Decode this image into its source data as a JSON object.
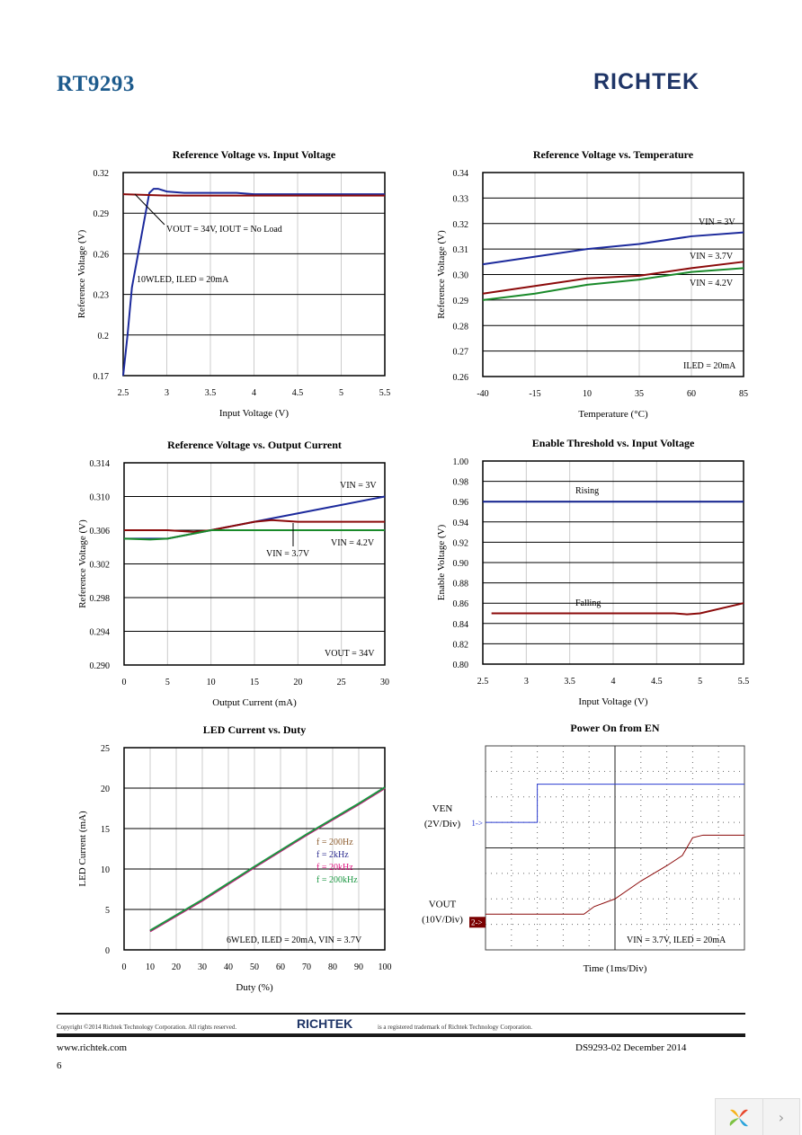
{
  "header": {
    "doc_title": "RT9293",
    "logo": "RICHTEK"
  },
  "footer": {
    "copyright": "Copyright ©2014 Richtek Technology Corporation. All rights reserved.",
    "trademark": "is a registered trademark of Richtek Technology Corporation.",
    "logo": "RICHTEK",
    "url": "www.richtek.com",
    "doc_id": "DS9293-02   December  2014",
    "page_number": "6"
  },
  "viewer": {
    "logo_icon": "pinwheel-icon",
    "next_icon": "chevron-right-icon",
    "next_label": "›"
  },
  "chart_data": [
    {
      "type": "line",
      "title": "Reference Voltage vs. Input  Voltage",
      "xlabel": "Input  Voltage (V)",
      "ylabel": "Reference Voltage (V)",
      "xlim": [
        2.5,
        5.5
      ],
      "ylim": [
        0.17,
        0.32
      ],
      "xticks": [
        "2.5",
        "3",
        "3.5",
        "4",
        "4.5",
        "5",
        "5.5"
      ],
      "yticks": [
        "0.17",
        "0.2",
        "0.23",
        "0.26",
        "0.29",
        "0.32"
      ],
      "grid": true,
      "series": [
        {
          "color": "#1c2a9c",
          "points": [
            [
              2.5,
              0.17
            ],
            [
              2.55,
              0.2
            ],
            [
              2.6,
              0.235
            ],
            [
              2.7,
              0.27
            ],
            [
              2.8,
              0.305
            ],
            [
              2.85,
              0.308
            ],
            [
              2.9,
              0.308
            ],
            [
              3,
              0.306
            ],
            [
              3.2,
              0.305
            ],
            [
              3.8,
              0.305
            ],
            [
              4,
              0.304
            ],
            [
              5.5,
              0.304
            ]
          ]
        },
        {
          "color": "#8b0a0a",
          "points": [
            [
              2.5,
              0.304
            ],
            [
              3,
              0.303
            ],
            [
              5.5,
              0.303
            ]
          ]
        }
      ],
      "annotations": [
        "VOUT = 34V, IOUT = No Load",
        "10WLED, ILED = 20mA"
      ]
    },
    {
      "type": "line",
      "title": "Reference Voltage vs. Temperature",
      "xlabel": "Temperature (°C)",
      "ylabel": "Reference Voltage (V)",
      "xlim": [
        -40,
        85
      ],
      "ylim": [
        0.26,
        0.34
      ],
      "xticks": [
        "-40",
        "-15",
        "10",
        "35",
        "60",
        "85"
      ],
      "yticks": [
        "0.26",
        "0.27",
        "0.28",
        "0.29",
        "0.30",
        "0.31",
        "0.32",
        "0.33",
        "0.34"
      ],
      "grid": true,
      "series": [
        {
          "name": "VIN = 3V",
          "color": "#1c2a9c",
          "points": [
            [
              -40,
              0.304
            ],
            [
              -15,
              0.307
            ],
            [
              10,
              0.31
            ],
            [
              35,
              0.312
            ],
            [
              60,
              0.315
            ],
            [
              85,
              0.3165
            ]
          ]
        },
        {
          "name": "VIN = 3.7V",
          "color": "#8b0a0a",
          "points": [
            [
              -40,
              0.2925
            ],
            [
              -15,
              0.2955
            ],
            [
              10,
              0.2985
            ],
            [
              35,
              0.2995
            ],
            [
              60,
              0.3025
            ],
            [
              85,
              0.305
            ]
          ]
        },
        {
          "name": "VIN = 4.2V",
          "color": "#1a8a2a",
          "points": [
            [
              -40,
              0.29
            ],
            [
              -15,
              0.2925
            ],
            [
              10,
              0.296
            ],
            [
              35,
              0.298
            ],
            [
              60,
              0.301
            ],
            [
              85,
              0.3025
            ]
          ]
        }
      ],
      "annotations": [
        "ILED = 20mA"
      ]
    },
    {
      "type": "line",
      "title": "Reference Voltage vs. Output Current",
      "xlabel": "Output Current (mA)",
      "ylabel": "Reference Voltage (V)",
      "xlim": [
        0,
        30
      ],
      "ylim": [
        0.29,
        0.314
      ],
      "xticks": [
        "0",
        "5",
        "10",
        "15",
        "20",
        "25",
        "30"
      ],
      "yticks": [
        "0.290",
        "0.294",
        "0.298",
        "0.302",
        "0.306",
        "0.310",
        "0.314"
      ],
      "grid": true,
      "series": [
        {
          "name": "VIN = 3V",
          "color": "#1c2a9c",
          "points": [
            [
              0,
              0.305
            ],
            [
              5,
              0.305
            ],
            [
              10,
              0.306
            ],
            [
              15,
              0.307
            ],
            [
              20,
              0.308
            ],
            [
              25,
              0.309
            ],
            [
              30,
              0.31
            ]
          ]
        },
        {
          "name": "VIN = 3.7V",
          "color": "#8b0a0a",
          "points": [
            [
              0,
              0.306
            ],
            [
              5,
              0.306
            ],
            [
              8,
              0.3058
            ],
            [
              10,
              0.306
            ],
            [
              15,
              0.307
            ],
            [
              17,
              0.3072
            ],
            [
              20,
              0.307
            ],
            [
              30,
              0.307
            ]
          ]
        },
        {
          "name": "VIN = 4.2V",
          "color": "#1a8a2a",
          "points": [
            [
              0,
              0.305
            ],
            [
              3,
              0.3049
            ],
            [
              5,
              0.305
            ],
            [
              10,
              0.306
            ],
            [
              13,
              0.306
            ],
            [
              30,
              0.306
            ]
          ]
        }
      ],
      "annotations": [
        "VOUT = 34V"
      ]
    },
    {
      "type": "line",
      "title": "Enable Threshold vs. Input Voltage",
      "xlabel": "Input Voltage (V)",
      "ylabel": "Enable Voltage (V)",
      "xlim": [
        2.5,
        5.5
      ],
      "ylim": [
        0.8,
        1.0
      ],
      "xticks": [
        "2.5",
        "3",
        "3.5",
        "4",
        "4.5",
        "5",
        "5.5"
      ],
      "yticks": [
        "0.80",
        "0.82",
        "0.84",
        "0.86",
        "0.88",
        "0.90",
        "0.92",
        "0.94",
        "0.96",
        "0.98",
        "1.00"
      ],
      "grid": true,
      "series": [
        {
          "name": "Rising",
          "color": "#0f1f8c",
          "points": [
            [
              2.5,
              0.96
            ],
            [
              5.5,
              0.96
            ]
          ]
        },
        {
          "name": "Falling",
          "color": "#8b0a0a",
          "points": [
            [
              2.6,
              0.85
            ],
            [
              4.7,
              0.85
            ],
            [
              4.85,
              0.849
            ],
            [
              5,
              0.85
            ],
            [
              5.5,
              0.86
            ]
          ]
        }
      ],
      "annotations": []
    },
    {
      "type": "line",
      "title": "LED Current vs. Duty",
      "xlabel": "Duty (%)",
      "ylabel": "LED Current (mA)",
      "xlim": [
        0,
        100
      ],
      "ylim": [
        0,
        25
      ],
      "xticks": [
        "0",
        "10",
        "20",
        "30",
        "40",
        "50",
        "60",
        "70",
        "80",
        "90",
        "100"
      ],
      "yticks": [
        "0",
        "5",
        "10",
        "15",
        "20",
        "25"
      ],
      "grid": true,
      "series": [
        {
          "name": "f = 200Hz",
          "color": "#8b5a2b",
          "points": [
            [
              10,
              2.3
            ],
            [
              30,
              6.1
            ],
            [
              50,
              10.2
            ],
            [
              70,
              14.2
            ],
            [
              90,
              18.0
            ],
            [
              100,
              20.0
            ]
          ]
        },
        {
          "name": "f = 2kHz",
          "color": "#2b2b8f",
          "points": [
            [
              10,
              2.3
            ],
            [
              30,
              6.1
            ],
            [
              50,
              10.2
            ],
            [
              70,
              14.2
            ],
            [
              90,
              18.0
            ],
            [
              100,
              20.0
            ]
          ]
        },
        {
          "name": "f = 20kHz",
          "color": "#e0117f",
          "points": [
            [
              10,
              2.3
            ],
            [
              30,
              6.1
            ],
            [
              50,
              10.2
            ],
            [
              70,
              14.2
            ],
            [
              90,
              18.0
            ],
            [
              100,
              20.0
            ]
          ]
        },
        {
          "name": "f = 200kHz",
          "color": "#1a9641",
          "points": [
            [
              10,
              2.4
            ],
            [
              30,
              6.2
            ],
            [
              50,
              10.3
            ],
            [
              70,
              14.3
            ],
            [
              90,
              18.1
            ],
            [
              100,
              20.1
            ]
          ]
        }
      ],
      "annotations": [
        "6WLED, ILED = 20mA, VIN = 3.7V"
      ]
    },
    {
      "type": "line",
      "title": "Power On from EN",
      "xlabel": "Time (1ms/Div)",
      "xlim": [
        0,
        10
      ],
      "ylim": [
        0,
        8
      ],
      "grid": true,
      "series": [
        {
          "name": "VEN",
          "scale": "(2V/Div)",
          "marker": "1->",
          "color": "#2b3cd0",
          "points": [
            [
              0,
              5.0
            ],
            [
              2.0,
              5.0
            ],
            [
              2.0,
              6.5
            ],
            [
              10,
              6.5
            ]
          ]
        },
        {
          "name": "VOUT",
          "scale": "(10V/Div)",
          "marker": "2->",
          "color": "#8b0a0a",
          "points": [
            [
              0,
              1.4
            ],
            [
              3.8,
              1.4
            ],
            [
              4.2,
              1.7
            ],
            [
              5.0,
              2.0
            ],
            [
              6.0,
              2.7
            ],
            [
              7.0,
              3.3
            ],
            [
              7.6,
              3.7
            ],
            [
              8.0,
              4.4
            ],
            [
              8.4,
              4.5
            ],
            [
              10,
              4.5
            ]
          ]
        }
      ],
      "annotations": [
        "VIN = 3.7V, ILED = 20mA"
      ]
    }
  ]
}
